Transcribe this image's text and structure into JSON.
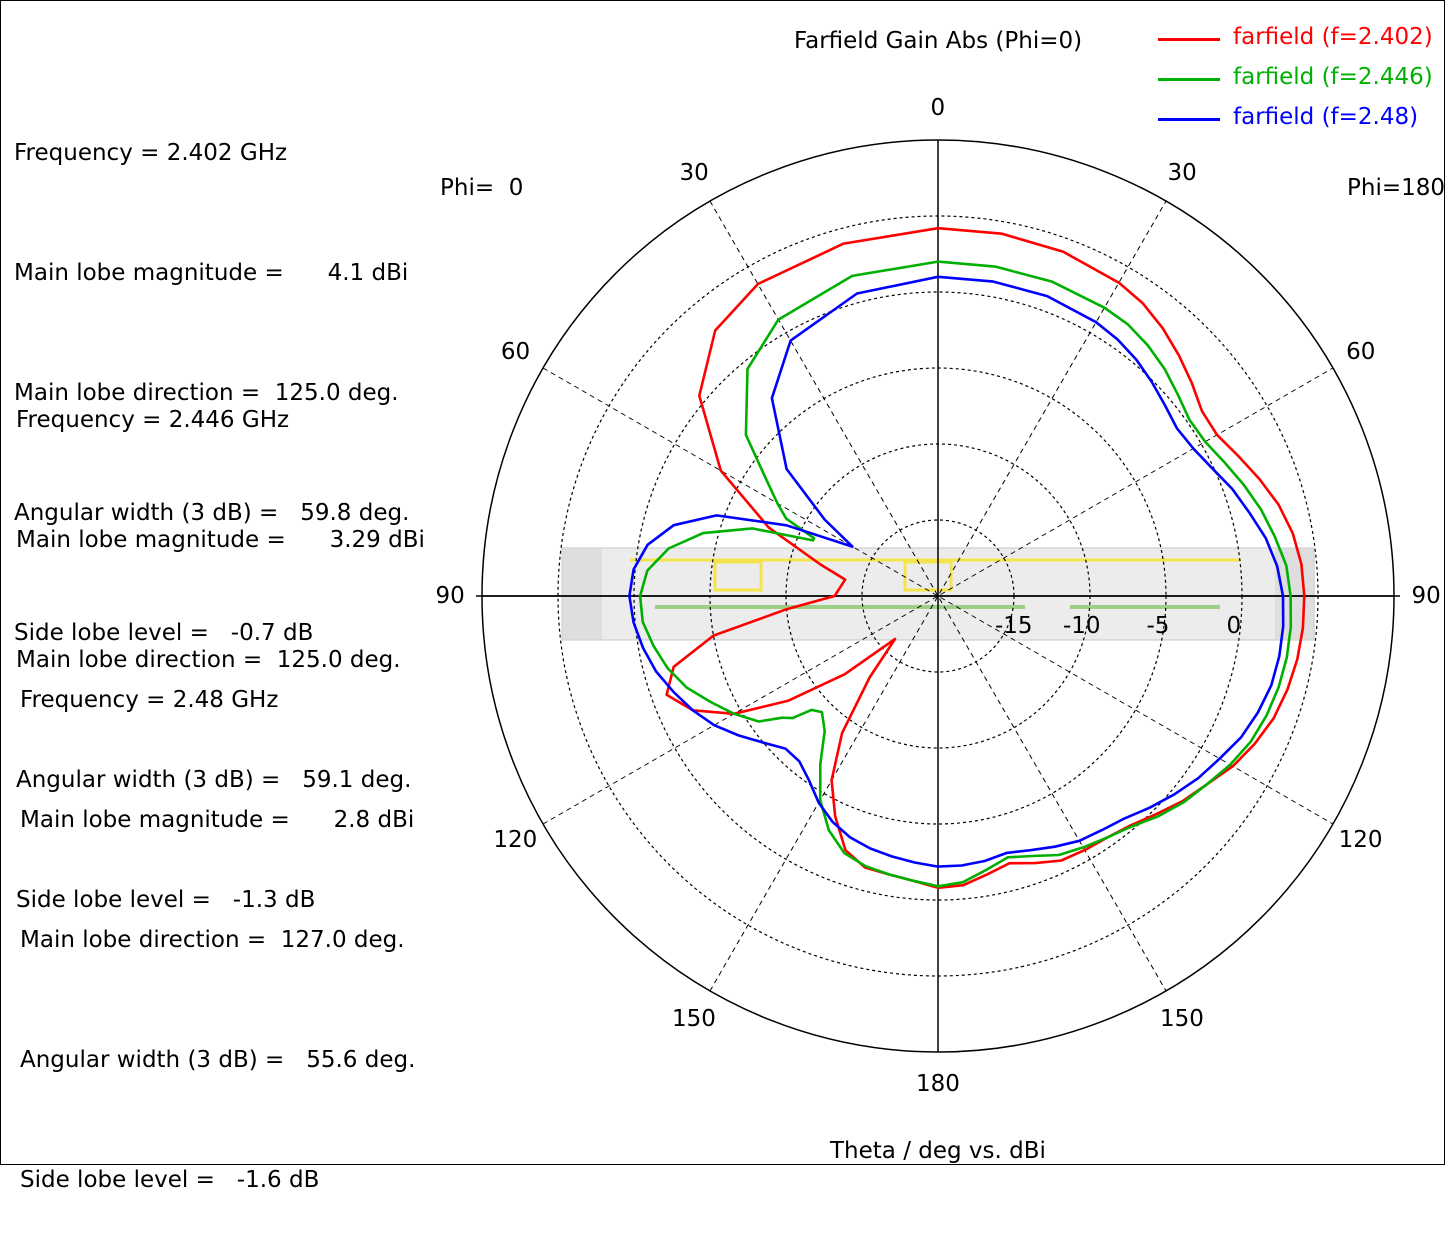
{
  "chart_data": {
    "type": "polar-line",
    "title": "Farfield Gain Abs (Phi=0)",
    "xlabel": "Theta / deg vs. dBi",
    "phi_left_label": "Phi=  0",
    "phi_right_label": "Phi=180",
    "angle_tick_labels": [
      {
        "theta": 0,
        "text": "0"
      },
      {
        "theta": 30,
        "text": "30"
      },
      {
        "theta": -30,
        "text": "30"
      },
      {
        "theta": 60,
        "text": "60"
      },
      {
        "theta": -60,
        "text": "60"
      },
      {
        "theta": 90,
        "text": "90"
      },
      {
        "theta": -90,
        "text": "90"
      },
      {
        "theta": 120,
        "text": "120"
      },
      {
        "theta": -120,
        "text": "120"
      },
      {
        "theta": 150,
        "text": "150"
      },
      {
        "theta": -150,
        "text": "150"
      },
      {
        "theta": 180,
        "text": "180"
      }
    ],
    "radial_tick_labels": [
      "-15",
      "-10",
      "-5",
      "0"
    ],
    "r_min": -20,
    "r_max": 10,
    "radial_rings": [
      -15,
      -10,
      -5,
      0,
      5
    ],
    "series": [
      {
        "name": "farfield (f=2.402)",
        "color": "#ff0000",
        "points": [
          [
            0,
            4.2
          ],
          [
            15,
            4.0
          ],
          [
            30,
            3.7
          ],
          [
            40,
            2.8
          ],
          [
            50,
            0.5
          ],
          [
            60,
            -3.5
          ],
          [
            68,
            -8
          ],
          [
            75,
            -12
          ],
          [
            80,
            -13.8
          ],
          [
            90,
            -13.2
          ],
          [
            95,
            -10
          ],
          [
            100,
            -5
          ],
          [
            105,
            -2
          ],
          [
            110,
            -1
          ],
          [
            115,
            -2.2
          ],
          [
            120,
            -4.5
          ],
          [
            125,
            -8
          ],
          [
            130,
            -12
          ],
          [
            135,
            -16
          ],
          [
            140,
            -13
          ],
          [
            145,
            -9
          ],
          [
            150,
            -6
          ],
          [
            155,
            -4
          ],
          [
            160,
            -2.2
          ],
          [
            165,
            -1.5
          ],
          [
            170,
            -1.4
          ],
          [
            175,
            -1.2
          ],
          [
            180,
            -0.8
          ],
          [
            185,
            -0.9
          ],
          [
            190,
            -1.4
          ],
          [
            195,
            -1.8
          ],
          [
            200,
            -1.3
          ],
          [
            205,
            -0.8
          ],
          [
            210,
            -0.7
          ],
          [
            215,
            -0.6
          ],
          [
            220,
            -0.3
          ],
          [
            225,
            0.3
          ],
          [
            230,
            1.0
          ],
          [
            235,
            1.6
          ],
          [
            240,
            2.4
          ],
          [
            245,
            3.0
          ],
          [
            250,
            3.5
          ],
          [
            255,
            3.8
          ],
          [
            260,
            4.0
          ],
          [
            265,
            4.1
          ],
          [
            270,
            4.1
          ],
          [
            275,
            4.0
          ],
          [
            280,
            3.7
          ],
          [
            285,
            3.2
          ],
          [
            290,
            2.5
          ],
          [
            295,
            1.8
          ],
          [
            300,
            1.2
          ],
          [
            305,
            1.2
          ],
          [
            310,
            1.8
          ],
          [
            315,
            2.4
          ],
          [
            320,
            3.0
          ],
          [
            325,
            3.5
          ],
          [
            330,
            3.8
          ],
          [
            340,
            4.1
          ],
          [
            350,
            4.2
          ],
          [
            360,
            4.2
          ]
        ]
      },
      {
        "name": "farfield (f=2.446)",
        "color": "#00b000",
        "points": [
          [
            0,
            2.0
          ],
          [
            15,
            1.8
          ],
          [
            30,
            1.0
          ],
          [
            40,
            -0.5
          ],
          [
            50,
            -3.5
          ],
          [
            55,
            -6
          ],
          [
            60,
            -7.8
          ],
          [
            63,
            -8.8
          ],
          [
            65,
            -11
          ],
          [
            66,
            -11
          ],
          [
            70,
            -7
          ],
          [
            75,
            -4
          ],
          [
            80,
            -2
          ],
          [
            85,
            -0.8
          ],
          [
            90,
            -0.4
          ],
          [
            95,
            -0.5
          ],
          [
            100,
            -1.0
          ],
          [
            105,
            -1.6
          ],
          [
            110,
            -2.4
          ],
          [
            115,
            -3.5
          ],
          [
            120,
            -4.5
          ],
          [
            125,
            -5.6
          ],
          [
            128,
            -7.0
          ],
          [
            130,
            -7.5
          ],
          [
            132,
            -8.8
          ],
          [
            135,
            -9.2
          ],
          [
            140,
            -8.4
          ],
          [
            145,
            -6.5
          ],
          [
            150,
            -4.5
          ],
          [
            155,
            -3.0
          ],
          [
            160,
            -2.0
          ],
          [
            165,
            -1.6
          ],
          [
            170,
            -1.4
          ],
          [
            175,
            -1.2
          ],
          [
            180,
            -0.9
          ],
          [
            185,
            -1.1
          ],
          [
            190,
            -1.7
          ],
          [
            195,
            -2.2
          ],
          [
            200,
            -1.8
          ],
          [
            205,
            -1.2
          ],
          [
            210,
            -0.9
          ],
          [
            215,
            -0.6
          ],
          [
            220,
            -0.2
          ],
          [
            225,
            0.5
          ],
          [
            230,
            1.1
          ],
          [
            235,
            1.6
          ],
          [
            240,
            2.2
          ],
          [
            245,
            2.7
          ],
          [
            250,
            3.0
          ],
          [
            255,
            3.2
          ],
          [
            260,
            3.3
          ],
          [
            265,
            3.3
          ],
          [
            270,
            3.2
          ],
          [
            275,
            3.0
          ],
          [
            280,
            2.5
          ],
          [
            285,
            2.0
          ],
          [
            290,
            1.4
          ],
          [
            295,
            0.8
          ],
          [
            300,
            0.3
          ],
          [
            305,
            0.2
          ],
          [
            310,
            0.6
          ],
          [
            315,
            1.1
          ],
          [
            320,
            1.5
          ],
          [
            325,
            1.8
          ],
          [
            330,
            1.9
          ],
          [
            340,
            2.0
          ],
          [
            350,
            2.0
          ],
          [
            360,
            2.0
          ]
        ]
      },
      {
        "name": "farfield (f=2.48)",
        "color": "#0000ff",
        "points": [
          [
            0,
            1.0
          ],
          [
            15,
            0.6
          ],
          [
            30,
            -0.6
          ],
          [
            40,
            -3.0
          ],
          [
            50,
            -7.0
          ],
          [
            56,
            -11.0
          ],
          [
            60,
            -13.5
          ],
          [
            65,
            -9
          ],
          [
            70,
            -4.5
          ],
          [
            75,
            -2.0
          ],
          [
            80,
            -0.6
          ],
          [
            85,
            0.1
          ],
          [
            90,
            0.3
          ],
          [
            95,
            0.1
          ],
          [
            100,
            -0.3
          ],
          [
            105,
            -0.8
          ],
          [
            110,
            -1.5
          ],
          [
            115,
            -2.2
          ],
          [
            120,
            -3.0
          ],
          [
            125,
            -4.0
          ],
          [
            130,
            -5.0
          ],
          [
            135,
            -5.8
          ],
          [
            140,
            -5.8
          ],
          [
            145,
            -5.2
          ],
          [
            150,
            -4.3
          ],
          [
            155,
            -3.6
          ],
          [
            160,
            -3.1
          ],
          [
            165,
            -2.8
          ],
          [
            170,
            -2.6
          ],
          [
            175,
            -2.4
          ],
          [
            180,
            -2.2
          ],
          [
            185,
            -2.2
          ],
          [
            190,
            -2.3
          ],
          [
            195,
            -2.5
          ],
          [
            200,
            -2.2
          ],
          [
            205,
            -1.8
          ],
          [
            210,
            -1.4
          ],
          [
            215,
            -1.2
          ],
          [
            220,
            -0.9
          ],
          [
            225,
            -0.3
          ],
          [
            230,
            0.3
          ],
          [
            235,
            0.9
          ],
          [
            240,
            1.4
          ],
          [
            245,
            2.0
          ],
          [
            250,
            2.4
          ],
          [
            255,
            2.7
          ],
          [
            260,
            2.8
          ],
          [
            265,
            2.8
          ],
          [
            270,
            2.7
          ],
          [
            275,
            2.4
          ],
          [
            280,
            1.9
          ],
          [
            285,
            1.2
          ],
          [
            290,
            0.6
          ],
          [
            295,
            -0.1
          ],
          [
            300,
            -0.6
          ],
          [
            305,
            -0.8
          ],
          [
            310,
            -0.5
          ],
          [
            315,
            -0.1
          ],
          [
            320,
            0.3
          ],
          [
            325,
            0.6
          ],
          [
            330,
            0.8
          ],
          [
            340,
            1.0
          ],
          [
            350,
            1.0
          ],
          [
            360,
            1.0
          ]
        ]
      }
    ]
  },
  "info_blocks": [
    {
      "frequency": "Frequency = 2.402 GHz",
      "magnitude": "Main lobe magnitude =      4.1 dBi",
      "direction": "Main lobe direction =  125.0 deg.",
      "width": "Angular width (3 dB) =   59.8 deg.",
      "sidelobe": "Side lobe level =   -0.7 dB"
    },
    {
      "frequency": "Frequency = 2.446 GHz",
      "magnitude": "Main lobe magnitude =      3.29 dBi",
      "direction": "Main lobe direction =  125.0 deg.",
      "width": "Angular width (3 dB) =   59.1 deg.",
      "sidelobe": "Side lobe level =   -1.3 dB"
    },
    {
      "frequency": "Frequency = 2.48 GHz",
      "magnitude": "Main lobe magnitude =      2.8 dBi",
      "direction": "Main lobe direction =  127.0 deg.",
      "width": "Angular width (3 dB) =   55.6 deg.",
      "sidelobe": "Side lobe level =   -1.6 dB"
    }
  ]
}
